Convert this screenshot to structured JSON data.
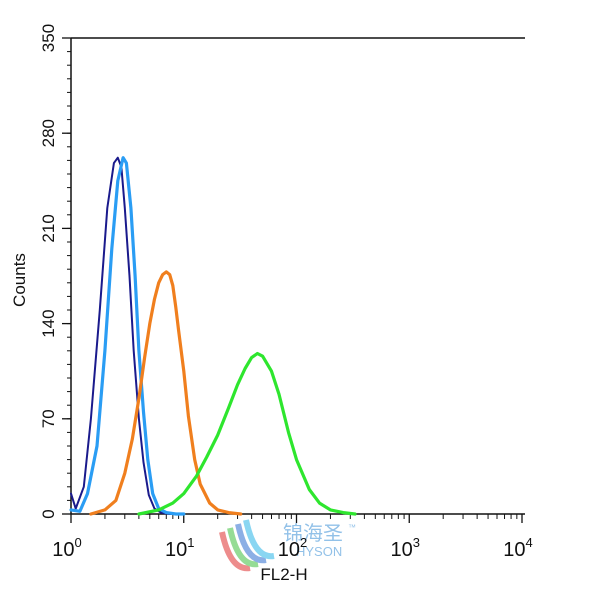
{
  "chart_data": {
    "type": "line",
    "title": "",
    "xlabel": "FL2-H",
    "ylabel": "Counts",
    "x_scale": "log",
    "xlim": [
      1,
      10000
    ],
    "ylim": [
      0,
      350
    ],
    "y_ticks": [
      "0",
      "70",
      "140",
      "210",
      "280",
      "350"
    ],
    "x_ticks": [
      {
        "base": "10",
        "exp": "0"
      },
      {
        "base": "10",
        "exp": "1"
      },
      {
        "base": "10",
        "exp": "2"
      },
      {
        "base": "10",
        "exp": "3"
      },
      {
        "base": "10",
        "exp": "4"
      }
    ],
    "grid": false,
    "legend": "none",
    "series": [
      {
        "color": "#1a1a8c",
        "x": [
          1.0,
          1.1,
          1.3,
          1.5,
          1.8,
          2.1,
          2.4,
          2.6,
          2.8,
          3.0,
          3.3,
          3.6,
          4.0,
          4.4,
          4.9,
          5.5,
          6.3,
          7.5,
          10
        ],
        "y": [
          15,
          4,
          20,
          70,
          150,
          225,
          258,
          262,
          255,
          225,
          175,
          120,
          70,
          38,
          14,
          4,
          1,
          0,
          0
        ]
      },
      {
        "color": "#2a9df4",
        "x": [
          1.0,
          1.2,
          1.4,
          1.7,
          2.0,
          2.3,
          2.6,
          2.9,
          3.1,
          3.4,
          3.7,
          4.0,
          4.4,
          4.8,
          5.3,
          6.0,
          7.0,
          8.5,
          10
        ],
        "y": [
          3,
          2,
          15,
          50,
          120,
          195,
          245,
          262,
          258,
          225,
          175,
          120,
          75,
          40,
          15,
          4,
          1,
          0,
          0
        ]
      },
      {
        "color": "#f07f1e",
        "x": [
          1.5,
          2.0,
          2.5,
          3.0,
          3.5,
          4.0,
          4.5,
          5.0,
          5.5,
          6.0,
          6.5,
          7.0,
          7.5,
          8.0,
          8.5,
          9.0,
          10,
          11,
          12.5,
          14,
          17,
          20,
          25,
          32
        ],
        "y": [
          0,
          3,
          10,
          30,
          55,
          85,
          115,
          140,
          158,
          170,
          176,
          178,
          176,
          168,
          152,
          135,
          105,
          72,
          40,
          22,
          8,
          3,
          1,
          0
        ]
      },
      {
        "color": "#2ee62e",
        "x": [
          4,
          6,
          8,
          10,
          13,
          16,
          20,
          25,
          30,
          35,
          40,
          45,
          50,
          60,
          70,
          85,
          100,
          130,
          160,
          200,
          260,
          330
        ],
        "y": [
          0,
          3,
          8,
          15,
          28,
          42,
          58,
          78,
          95,
          107,
          115,
          118,
          116,
          105,
          88,
          60,
          40,
          18,
          8,
          3,
          1,
          0
        ]
      }
    ]
  },
  "watermark": {
    "cjk": "锦海圣",
    "latin": "HYSON",
    "tm": "™"
  }
}
